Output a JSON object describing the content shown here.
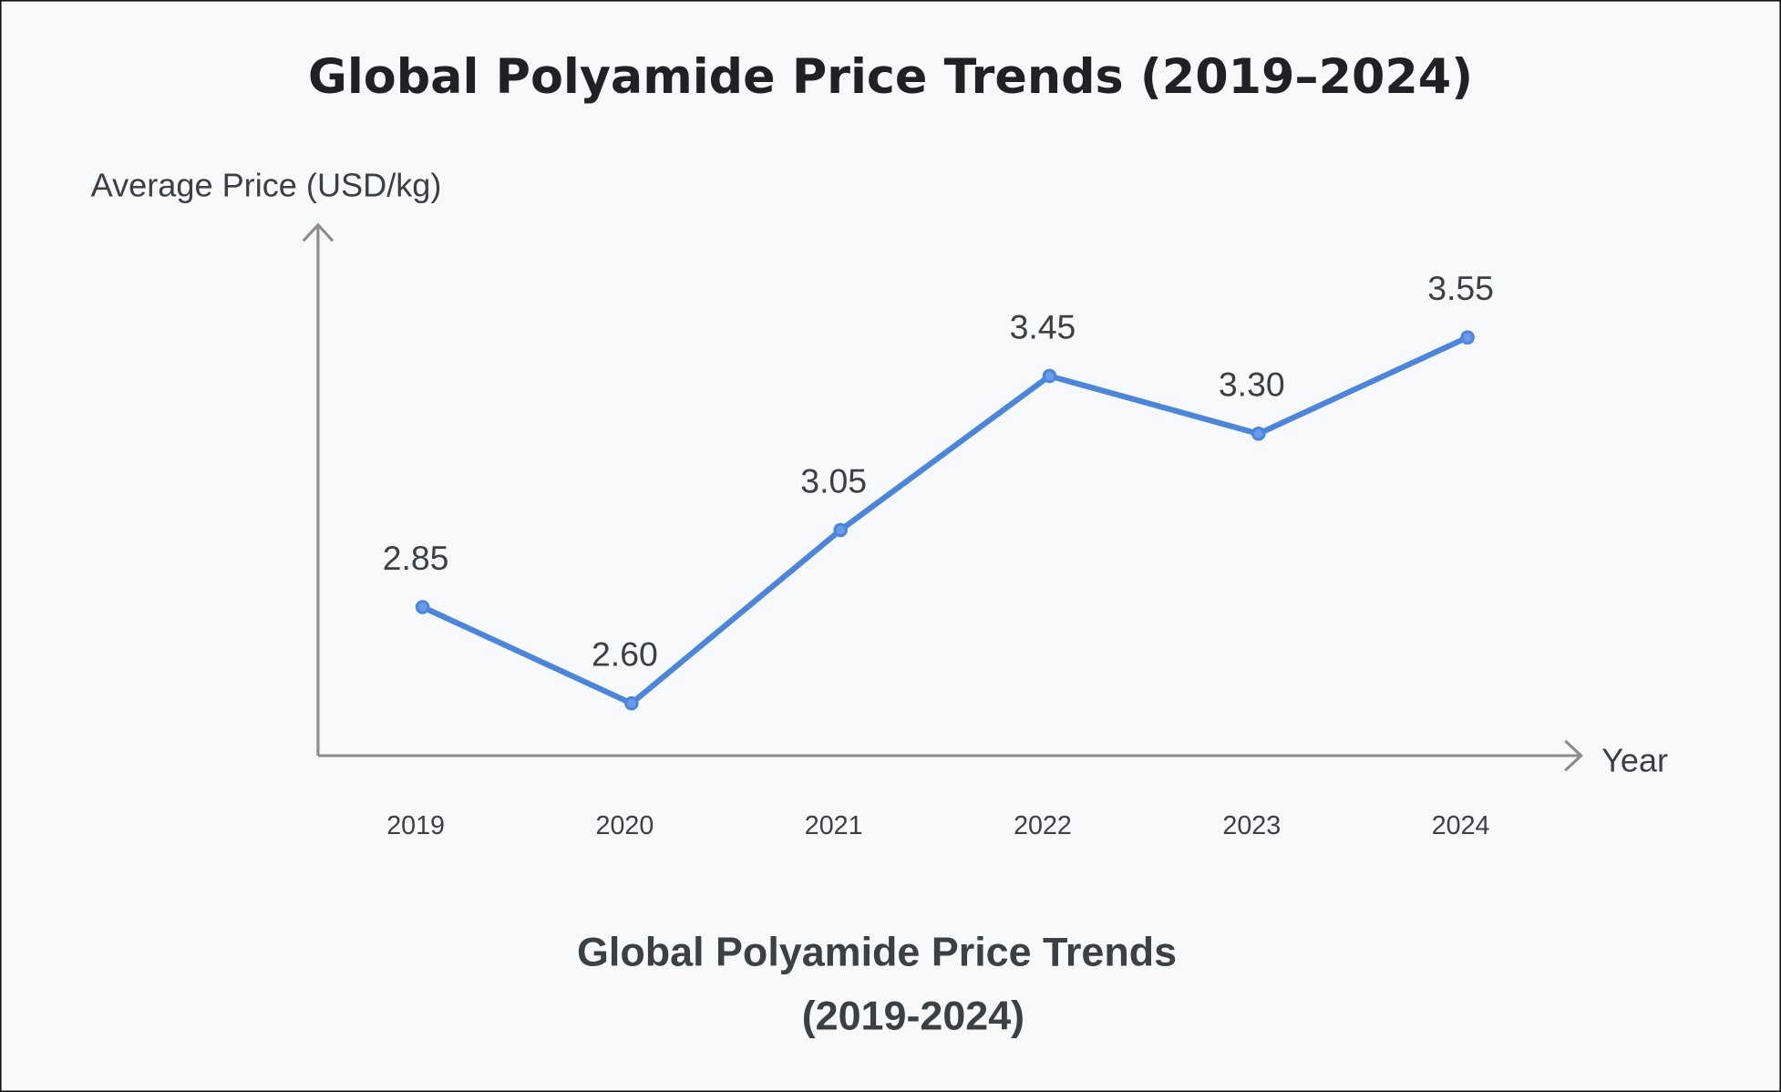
{
  "chart_data": {
    "type": "line",
    "title": "Global Polyamide Price Trends (2019–2024)",
    "caption_line1": "Global Polyamide Price Trends",
    "caption_line2": "(2019-2024)",
    "xlabel": "Year",
    "ylabel": "Average Price (USD/kg)",
    "categories": [
      "2019",
      "2020",
      "2021",
      "2022",
      "2023",
      "2024"
    ],
    "values": [
      2.85,
      2.6,
      3.05,
      3.45,
      3.3,
      3.55
    ],
    "data_labels": [
      "2.85",
      "2.60",
      "3.05",
      "3.45",
      "3.30",
      "3.55"
    ],
    "grid": false,
    "y_ticks_shown": false,
    "line_color": "#4a86e0",
    "axis_color": "#8c8c8c",
    "background": "#f8f9fb"
  }
}
